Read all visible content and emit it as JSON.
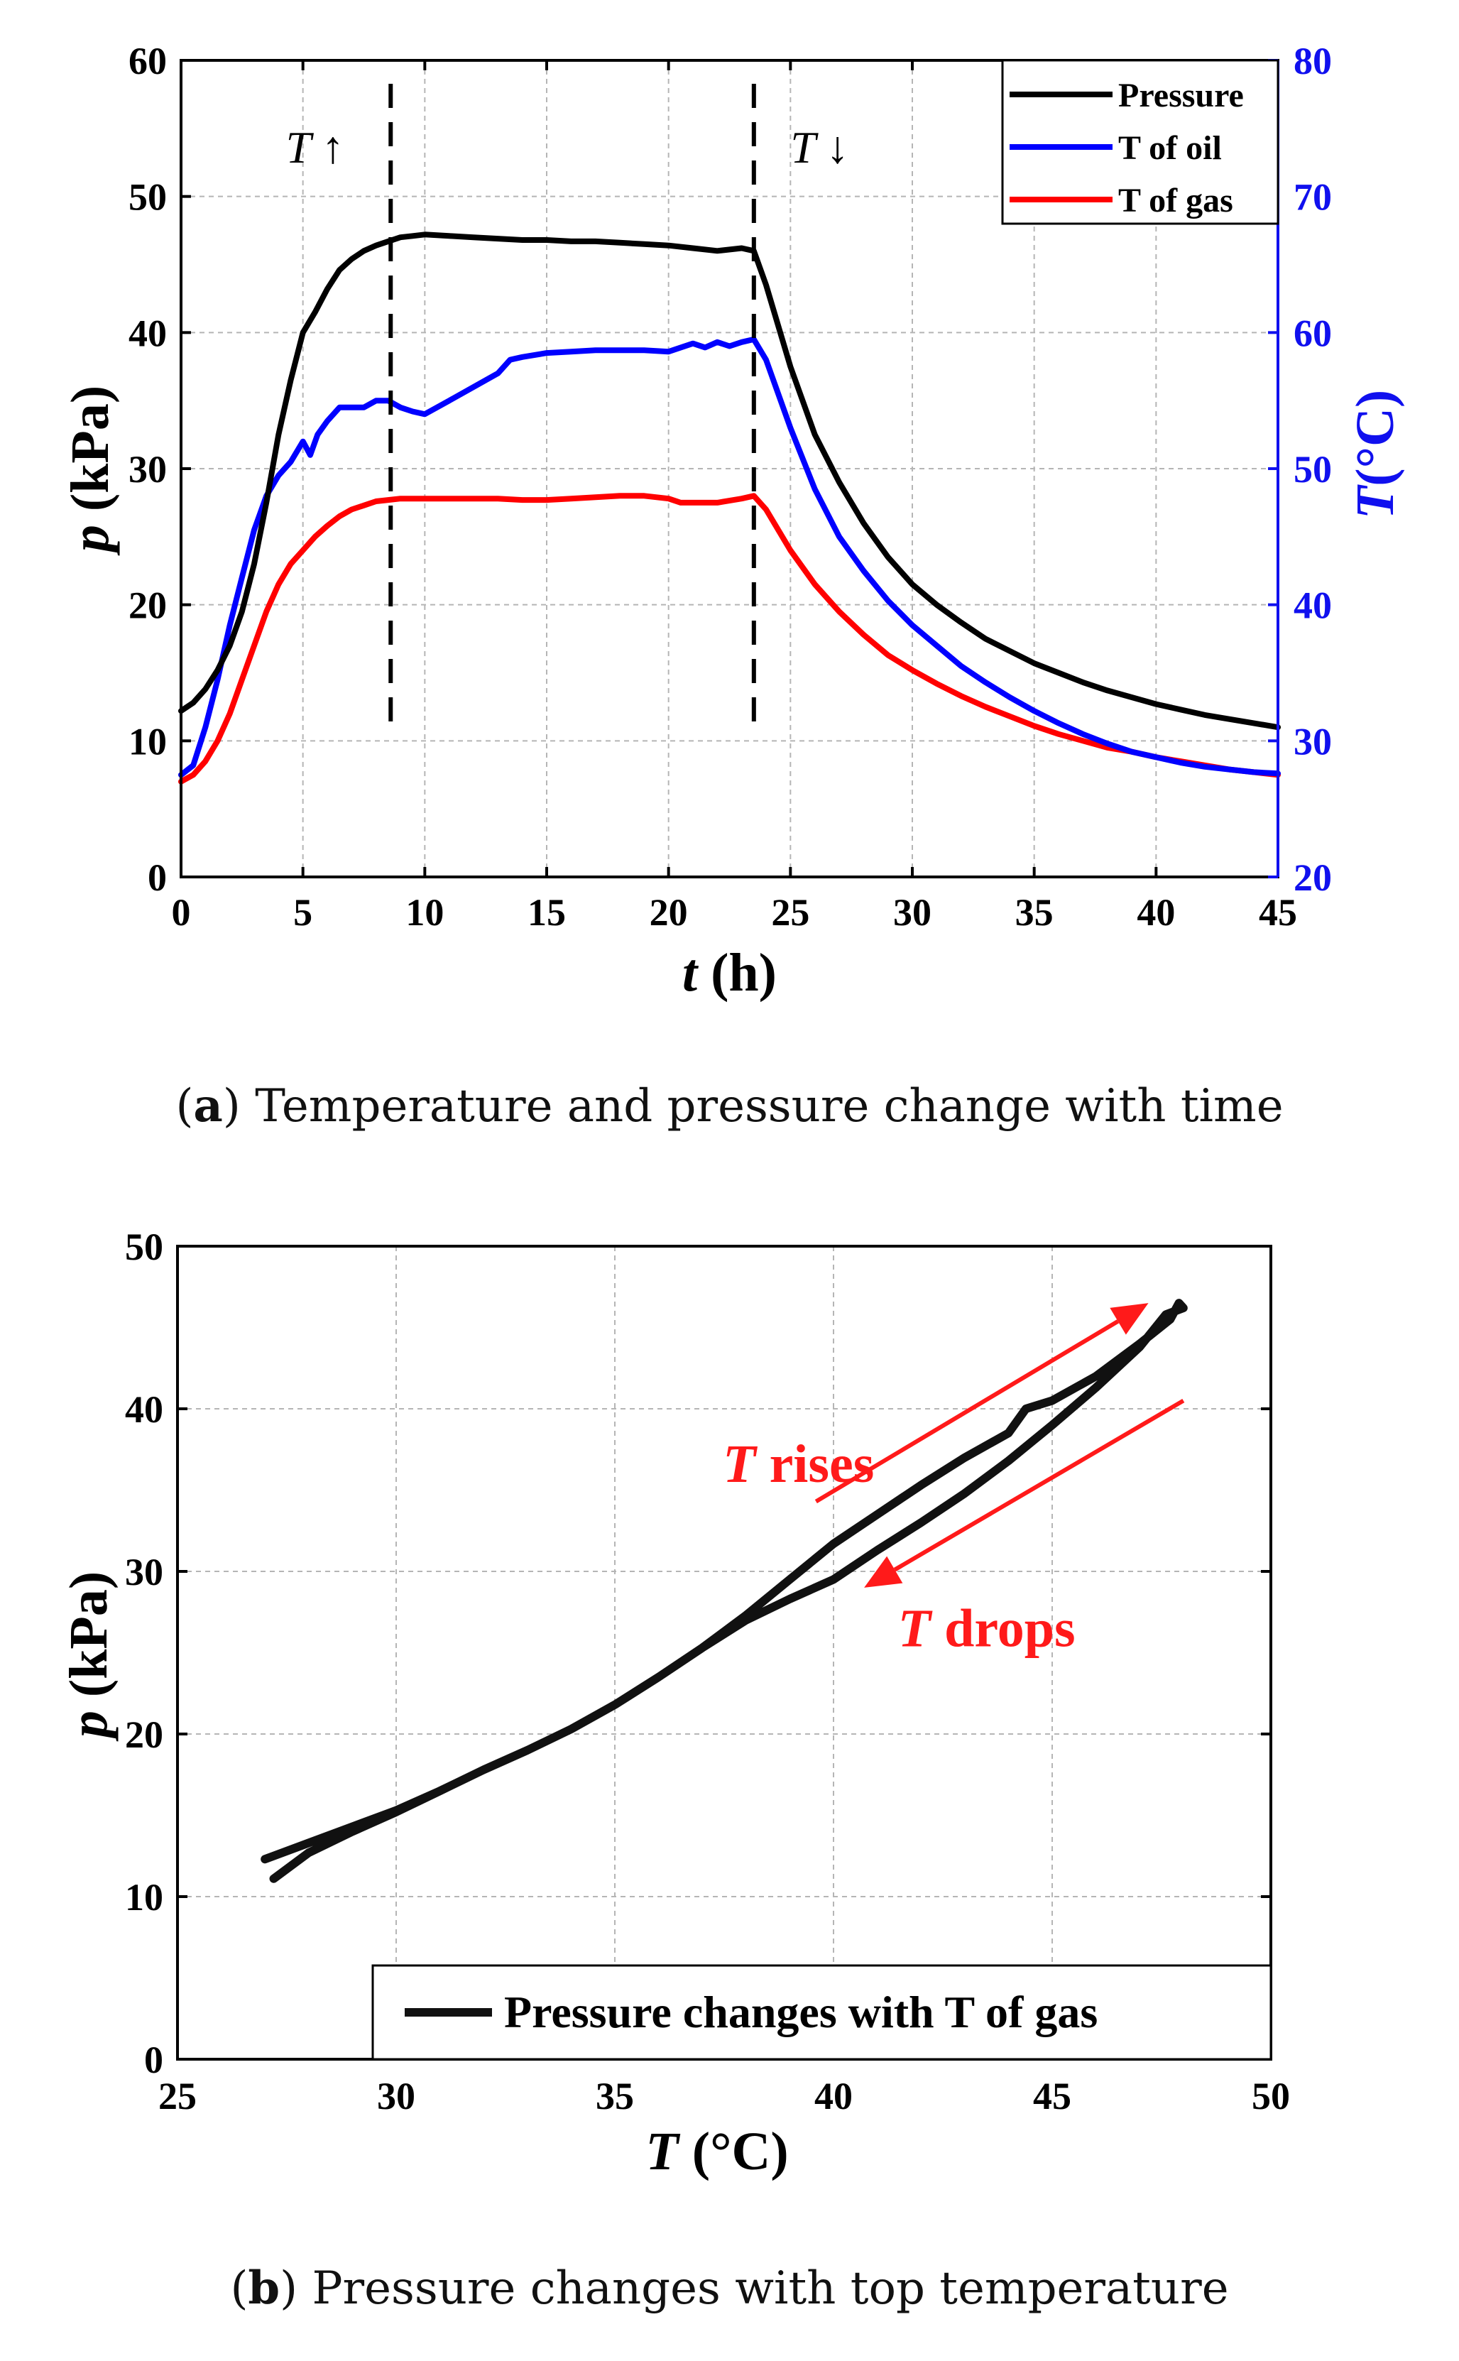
{
  "chart_data": [
    {
      "id": "a",
      "type": "line",
      "caption": {
        "label": "a",
        "text": "Temperature and pressure change with time"
      },
      "xlabel": "t",
      "xunit": "(h)",
      "ylabel": "p",
      "yunit": "(kPa)",
      "y2label": "T",
      "y2unit": "(°C)",
      "xlim": [
        0,
        45
      ],
      "ylim": [
        0,
        60
      ],
      "y2lim": [
        20,
        80
      ],
      "xticks": [
        0,
        5,
        10,
        15,
        20,
        25,
        30,
        35,
        40,
        45
      ],
      "yticks": [
        0,
        10,
        20,
        30,
        40,
        50,
        60
      ],
      "y2ticks": [
        20,
        30,
        40,
        50,
        60,
        70,
        80
      ],
      "grid": true,
      "legend_position": "top-right",
      "colors": {
        "y2_axis": "#1010ee"
      },
      "annotations": [
        {
          "text": "T ↑",
          "x": 5.5,
          "y": 52.5
        },
        {
          "text": "T ↓",
          "x": 26.2,
          "y": 52.5
        }
      ],
      "vlines": [
        8.6,
        23.5
      ],
      "series": [
        {
          "name": "Pressure",
          "axis": "left",
          "color": "#000000",
          "x": [
            0,
            0.5,
            1,
            1.5,
            2,
            2.5,
            3,
            3.5,
            4,
            4.5,
            5,
            5.5,
            6,
            6.5,
            7,
            7.5,
            8,
            8.5,
            9,
            9.5,
            10,
            11,
            12,
            13,
            14,
            15,
            16,
            17,
            18,
            19,
            20,
            21,
            22,
            23,
            23.5,
            24,
            25,
            26,
            27,
            28,
            29,
            30,
            31,
            32,
            33,
            34,
            35,
            36,
            37,
            38,
            39,
            40,
            41,
            42,
            43,
            44,
            45
          ],
          "y": [
            12.2,
            12.8,
            13.8,
            15.2,
            17,
            19.5,
            23,
            27.5,
            32.5,
            36.5,
            40,
            41.5,
            43.2,
            44.6,
            45.4,
            46,
            46.4,
            46.7,
            47,
            47.1,
            47.2,
            47.1,
            47,
            46.9,
            46.8,
            46.8,
            46.7,
            46.7,
            46.6,
            46.5,
            46.4,
            46.2,
            46,
            46.2,
            46,
            43.5,
            37.5,
            32.5,
            29,
            26,
            23.5,
            21.5,
            20,
            18.7,
            17.5,
            16.6,
            15.7,
            15,
            14.3,
            13.7,
            13.2,
            12.7,
            12.3,
            11.9,
            11.6,
            11.3,
            11
          ]
        },
        {
          "name": "T of oil",
          "axis": "right",
          "color": "#0000ff",
          "x": [
            0,
            0.5,
            1,
            1.5,
            2,
            2.5,
            3,
            3.5,
            4,
            4.5,
            5,
            5.3,
            5.6,
            6,
            6.5,
            7,
            7.5,
            8,
            8.5,
            9,
            9.5,
            10,
            10.5,
            11,
            12,
            13,
            13.5,
            14,
            15,
            16,
            17,
            18,
            19,
            20,
            20.5,
            21,
            21.5,
            22,
            22.5,
            23,
            23.5,
            24,
            25,
            26,
            27,
            28,
            29,
            30,
            31,
            32,
            33,
            34,
            35,
            36,
            37,
            38,
            39,
            40,
            41,
            42,
            43,
            44,
            45
          ],
          "y": [
            27.5,
            28.2,
            31,
            34.5,
            38.5,
            42,
            45.5,
            48,
            49.5,
            50.5,
            52,
            51,
            52.5,
            53.5,
            54.5,
            54.5,
            54.5,
            55,
            55,
            54.5,
            54.2,
            54,
            54.5,
            55,
            56,
            57,
            58,
            58.2,
            58.5,
            58.6,
            58.7,
            58.7,
            58.7,
            58.6,
            58.9,
            59.2,
            58.9,
            59.3,
            59,
            59.3,
            59.5,
            58,
            53,
            48.5,
            45,
            42.5,
            40.3,
            38.5,
            37,
            35.5,
            34.3,
            33.2,
            32.2,
            31.3,
            30.5,
            29.8,
            29.2,
            28.8,
            28.4,
            28.1,
            27.9,
            27.7,
            27.6
          ]
        },
        {
          "name": "T of gas",
          "axis": "right",
          "color": "#ff0000",
          "x": [
            0,
            0.5,
            1,
            1.5,
            2,
            2.5,
            3,
            3.5,
            4,
            4.5,
            5,
            5.5,
            6,
            6.5,
            7,
            7.5,
            8,
            8.5,
            9,
            10,
            11,
            12,
            13,
            14,
            15,
            16,
            17,
            18,
            19,
            20,
            20.5,
            21,
            22,
            23,
            23.5,
            24,
            25,
            26,
            27,
            28,
            29,
            30,
            31,
            32,
            33,
            34,
            35,
            36,
            37,
            38,
            39,
            40,
            41,
            42,
            43,
            44,
            45
          ],
          "y": [
            27,
            27.5,
            28.5,
            30,
            32,
            34.5,
            37,
            39.5,
            41.5,
            43,
            44,
            45,
            45.8,
            46.5,
            47,
            47.3,
            47.6,
            47.7,
            47.8,
            47.8,
            47.8,
            47.8,
            47.8,
            47.7,
            47.7,
            47.8,
            47.9,
            48,
            48,
            47.8,
            47.5,
            47.5,
            47.5,
            47.8,
            48,
            47,
            44,
            41.5,
            39.5,
            37.8,
            36.3,
            35.2,
            34.2,
            33.3,
            32.5,
            31.8,
            31.1,
            30.5,
            30,
            29.5,
            29.2,
            28.8,
            28.5,
            28.2,
            27.9,
            27.7,
            27.5
          ]
        }
      ]
    },
    {
      "id": "b",
      "type": "line",
      "caption": {
        "label": "b",
        "text": "Pressure changes with top temperature"
      },
      "xlabel": "T",
      "xunit": "(°C)",
      "ylabel": "p",
      "yunit": "(kPa)",
      "xlim": [
        25,
        50
      ],
      "ylim": [
        0,
        50
      ],
      "xticks": [
        25,
        30,
        35,
        40,
        45,
        50
      ],
      "yticks": [
        0,
        10,
        20,
        30,
        40,
        50
      ],
      "grid": true,
      "legend_position": "bottom-right",
      "colors": {
        "annotation": "#ff1a1a"
      },
      "annotations": [
        {
          "italic": "T",
          "text": " rises",
          "x": 39.2,
          "y": 35.5
        },
        {
          "italic": "T",
          "text": " drops",
          "x": 43.5,
          "y": 25.4
        }
      ],
      "arrows": [
        {
          "from": [
            39.6,
            34.3
          ],
          "to": [
            47.2,
            46.5
          ]
        },
        {
          "from": [
            48.0,
            40.5
          ],
          "to": [
            40.7,
            29.0
          ]
        }
      ],
      "series": [
        {
          "name": "Pressure changes with T of gas",
          "color": "#111111",
          "x": [
            27.0,
            28.0,
            29.0,
            30.0,
            31.0,
            32.0,
            33.0,
            34.0,
            35.0,
            36.0,
            37.0,
            38.0,
            39.0,
            40.0,
            41.0,
            42.0,
            43.0,
            44.0,
            44.4,
            45.0,
            46.0,
            47.0,
            47.7,
            47.9,
            48.0,
            47.6,
            47.0,
            46.0,
            45.0,
            44.0,
            43.0,
            42.0,
            41.0,
            40.0,
            39.0,
            38.0,
            37.0,
            36.0,
            35.0,
            34.0,
            33.0,
            32.0,
            31.0,
            30.0,
            29.0,
            28.0,
            27.2
          ],
          "y": [
            12.3,
            13.3,
            14.3,
            15.3,
            16.5,
            17.8,
            19.0,
            20.3,
            21.8,
            23.5,
            25.3,
            27.3,
            29.5,
            31.7,
            33.5,
            35.3,
            37.0,
            38.5,
            40.0,
            40.5,
            42.0,
            44.0,
            45.5,
            46.5,
            46.2,
            45.8,
            43.8,
            41.3,
            39.0,
            36.8,
            34.8,
            33.0,
            31.3,
            29.5,
            28.3,
            27.0,
            25.3,
            23.5,
            21.8,
            20.3,
            19.0,
            17.8,
            16.5,
            15.2,
            14.0,
            12.7,
            11.1
          ]
        }
      ]
    }
  ]
}
